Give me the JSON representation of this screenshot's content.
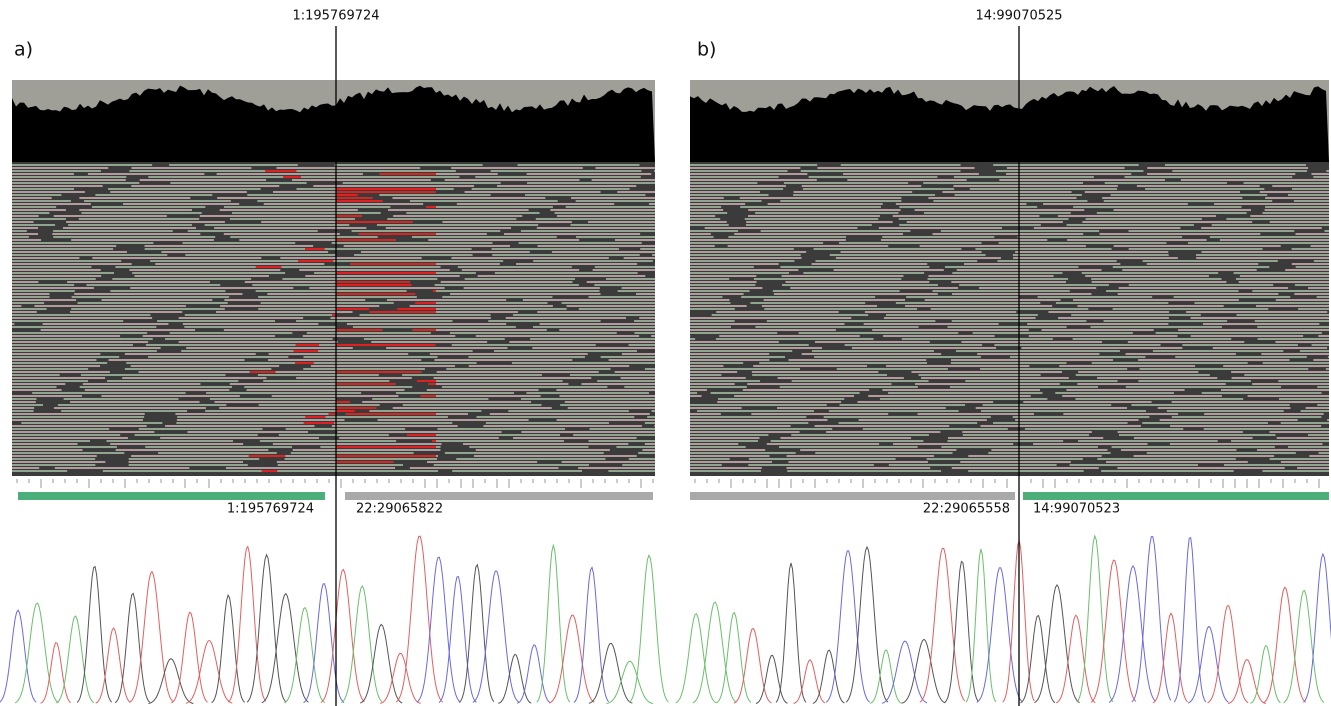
{
  "panels": [
    {
      "letter": "a)",
      "breakpoint": "1:195769724",
      "left_label": "1:195769724",
      "right_label": "22:29065822"
    },
    {
      "letter": "b)",
      "breakpoint": "14:99070525",
      "left_label": "22:29065558",
      "right_label": "14:99070523"
    }
  ]
}
